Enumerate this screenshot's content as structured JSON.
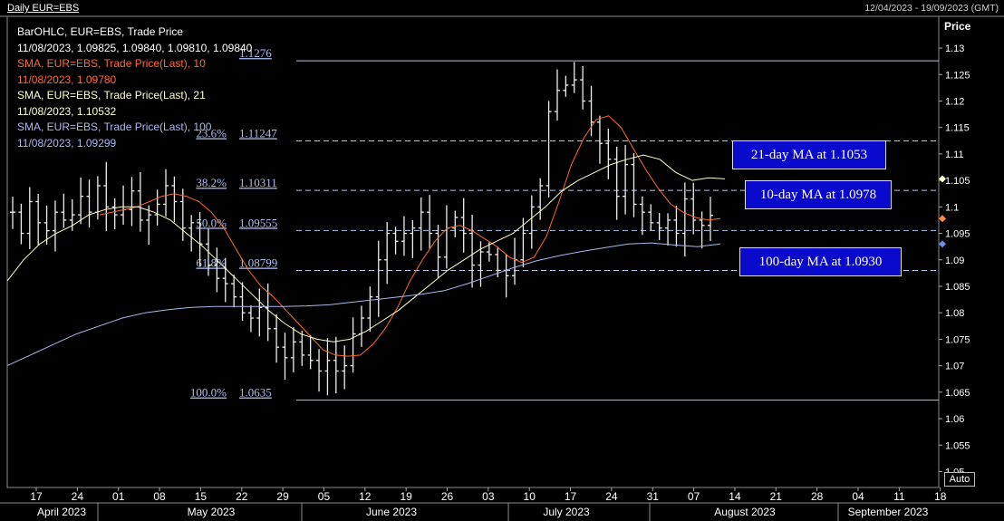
{
  "header": {
    "title": "Daily EUR=EBS",
    "date_range": "12/04/2023 - 19/09/2023 (GMT)"
  },
  "legend": [
    {
      "text": "BarOHLC, EUR=EBS, Trade Price",
      "color": "#ffffff"
    },
    {
      "text": "11/08/2023, 1.09825, 1.09840, 1.09810, 1.09840",
      "color": "#ffffff"
    },
    {
      "text": "SMA, EUR=EBS, Trade Price(Last),  10",
      "color": "#ff6a2a"
    },
    {
      "text": "11/08/2023, 1.09780",
      "color": "#ff6a2a"
    },
    {
      "text": "SMA, EUR=EBS, Trade Price(Last),  21",
      "color": "#ffffcc"
    },
    {
      "text": "11/08/2023, 1.10532",
      "color": "#ffffcc"
    },
    {
      "text": "SMA, EUR=EBS, Trade Price(Last),  100",
      "color": "#aab8ee"
    },
    {
      "text": "11/08/2023, 1.09299",
      "color": "#aab8ee"
    }
  ],
  "callouts": [
    {
      "text": "21-day MA at 1.1053"
    },
    {
      "text": "10-day MA at 1.0978"
    },
    {
      "text": "100-day MA at 1.0930"
    }
  ],
  "auto_label": "Auto",
  "chart_data": {
    "type": "bar",
    "title": "Daily EUR=EBS",
    "ylabel": "Price",
    "ylim": [
      1.047,
      1.136
    ],
    "y_ticks": [
      "1.13",
      "1.125",
      "1.12",
      "1.115",
      "1.11",
      "1.105",
      "1.1",
      "1.095",
      "1.09",
      "1.085",
      "1.08",
      "1.075",
      "1.07",
      "1.065",
      "1.06",
      "1.055",
      "1.05"
    ],
    "x_ticks": [
      "17",
      "24",
      "01",
      "08",
      "15",
      "22",
      "29",
      "05",
      "12",
      "19",
      "26",
      "03",
      "10",
      "17",
      "24",
      "31",
      "07",
      "14",
      "21",
      "28",
      "04",
      "11",
      "18"
    ],
    "months": [
      "April 2023",
      "May 2023",
      "June 2023",
      "July 2023",
      "August 2023",
      "September 2023"
    ],
    "fibonacci": [
      {
        "pct": "",
        "value": "1.1276",
        "level": 1.1276
      },
      {
        "pct": "23.6%",
        "value": "1.11247",
        "level": 1.11247
      },
      {
        "pct": "38.2%",
        "value": "1.10311",
        "level": 1.10311
      },
      {
        "pct": "50.0%",
        "value": "1.09555",
        "level": 1.09555
      },
      {
        "pct": "61.8%",
        "value": "1.08799",
        "level": 1.08799
      },
      {
        "pct": "100.0%",
        "value": "1.0635",
        "level": 1.0635
      }
    ],
    "ohlc_close": [
      1.099,
      1.095,
      1.101,
      1.097,
      1.0955,
      1.099,
      1.0975,
      1.0985,
      1.102,
      1.099,
      1.104,
      1.1,
      1.0985,
      1.0995,
      1.103,
      1.0975,
      1.0985,
      1.1005,
      1.104,
      1.101,
      1.096,
      1.097,
      1.093,
      1.089,
      1.0865,
      1.0855,
      1.083,
      1.08,
      1.079,
      1.081,
      1.077,
      1.0735,
      1.0715,
      1.0745,
      1.072,
      1.071,
      1.069,
      1.071,
      1.069,
      1.07,
      1.076,
      1.079,
      1.083,
      1.09,
      1.095,
      1.0935,
      1.095,
      1.096,
      1.099,
      1.095,
      1.0905,
      1.096,
      1.098,
      1.095,
      1.089,
      1.0915,
      1.091,
      1.088,
      1.087,
      1.09,
      1.095,
      1.1,
      1.104,
      1.118,
      1.122,
      1.123,
      1.124,
      1.12,
      1.116,
      1.112,
      1.109,
      1.102,
      1.108,
      1.1005,
      1.099,
      1.097,
      1.096,
      1.0975,
      1.095,
      1.1015,
      1.0975,
      1.0965,
      1.0984
    ],
    "series": [
      {
        "name": "SMA 10",
        "color": "#ff6a2a",
        "values": [
          1.0985,
          1.099,
          1.0995,
          1.1,
          1.101,
          1.102,
          1.1025,
          1.102,
          1.101,
          1.099,
          1.096,
          1.092,
          1.088,
          1.085,
          1.083,
          1.0805,
          1.078,
          1.0755,
          1.073,
          1.072,
          1.0718,
          1.072,
          1.074,
          1.077,
          1.081,
          1.086,
          1.09,
          1.0935,
          1.096,
          1.0965,
          1.0955,
          1.094,
          1.0925,
          1.0905,
          1.0895,
          1.0905,
          1.0945,
          1.101,
          1.108,
          1.113,
          1.1165,
          1.1172,
          1.115,
          1.111,
          1.107,
          1.1035,
          1.1005,
          1.099,
          1.098,
          1.0975,
          1.0978
        ]
      },
      {
        "name": "SMA 21",
        "color": "#ffffcc",
        "values": [
          1.086,
          1.09,
          1.093,
          1.095,
          1.0965,
          1.0985,
          1.0995,
          1.1,
          1.1,
          1.099,
          1.0975,
          1.095,
          1.0925,
          1.0895,
          1.0865,
          1.0835,
          1.0805,
          1.078,
          1.076,
          1.075,
          1.0745,
          1.075,
          1.0765,
          1.0785,
          1.0805,
          1.083,
          1.0855,
          1.088,
          1.09,
          1.092,
          1.0935,
          1.095,
          1.0975,
          1.1,
          1.103,
          1.105,
          1.1065,
          1.108,
          1.109,
          1.1098,
          1.109,
          1.1065,
          1.105,
          1.1055,
          1.1053
        ]
      },
      {
        "name": "SMA 100",
        "color": "#aab8ee",
        "values": [
          1.07,
          1.072,
          1.074,
          1.076,
          1.0775,
          1.079,
          1.08,
          1.0806,
          1.081,
          1.0812,
          1.0812,
          1.0812,
          1.0812,
          1.0813,
          1.0815,
          1.082,
          1.0825,
          1.083,
          1.0835,
          1.0842,
          1.0855,
          1.087,
          1.0885,
          1.0898,
          1.0908,
          1.0916,
          1.0923,
          1.093,
          1.0932,
          1.0928,
          1.0925,
          1.093
        ]
      }
    ]
  }
}
